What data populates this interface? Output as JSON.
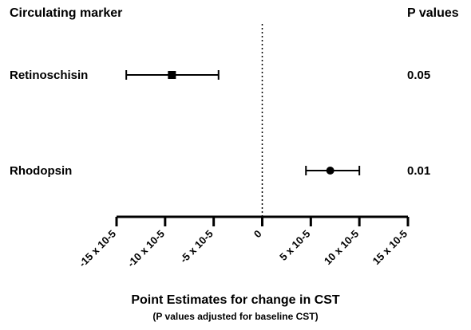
{
  "chart_data": {
    "type": "forest",
    "column_headers": {
      "marker": "Circulating marker",
      "p": "P values"
    },
    "xlabel": "Point Estimates for change in CST",
    "xlabel_sub": "(P values adjusted for baseline CST)",
    "x_unit": "x 10^-5",
    "xlim": [
      -15,
      15
    ],
    "x_ticks": [
      -15,
      -10,
      -5,
      0,
      5,
      10,
      15
    ],
    "x_tick_labels": [
      "-15 x 10-5",
      "-10 x 10-5",
      "-5 x 10-5",
      "0",
      "5 x 10-5",
      "10 x 10-5",
      "15 x 10-5"
    ],
    "reference_line": 0,
    "rows": [
      {
        "label": "Retinoschisin",
        "estimate": -9.3,
        "ci_low": -14.0,
        "ci_high": -4.5,
        "p_value": "0.05",
        "marker": "square"
      },
      {
        "label": "Rhodopsin",
        "estimate": 7.0,
        "ci_low": 4.5,
        "ci_high": 10.0,
        "p_value": "0.01",
        "marker": "circle"
      }
    ]
  }
}
